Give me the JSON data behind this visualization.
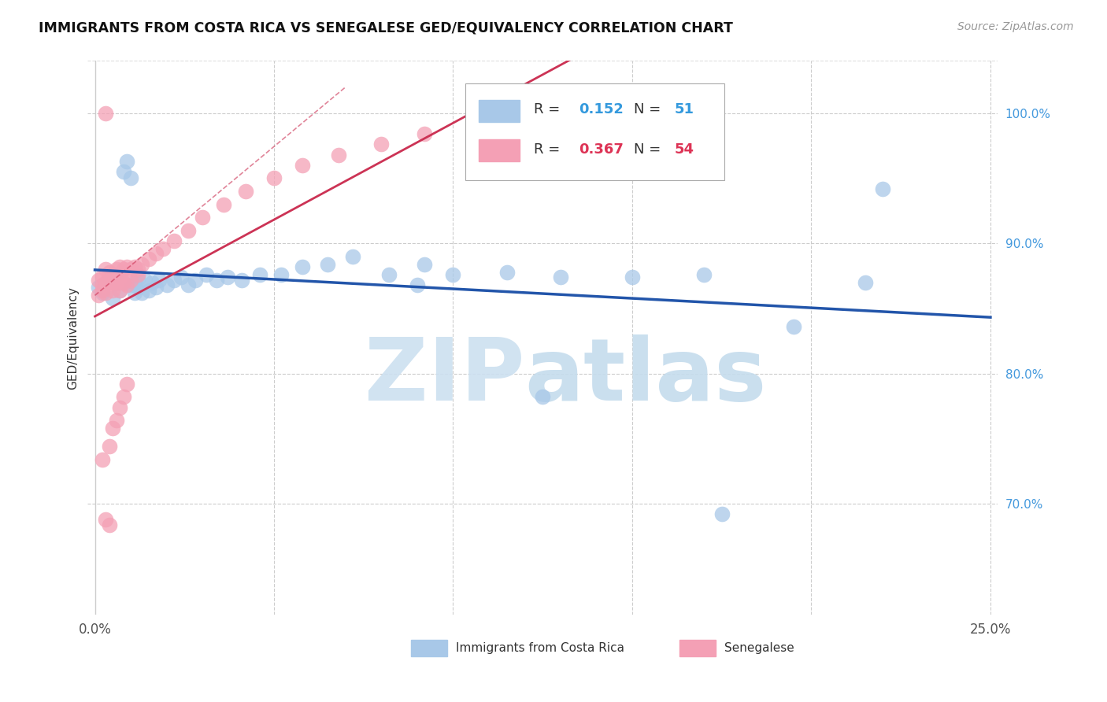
{
  "title": "IMMIGRANTS FROM COSTA RICA VS SENEGALESE GED/EQUIVALENCY CORRELATION CHART",
  "source": "Source: ZipAtlas.com",
  "ylabel": "GED/Equivalency",
  "xlim": [
    0.0,
    0.25
  ],
  "ylim": [
    0.615,
    1.04
  ],
  "color_blue": "#a8c8e8",
  "color_pink": "#f4a0b5",
  "line_blue": "#2255aa",
  "line_pink": "#cc3355",
  "watermark_zip": "#c8dff0",
  "watermark_atlas": "#c0d8ee",
  "blue_x": [
    0.001,
    0.002,
    0.003,
    0.004,
    0.005,
    0.005,
    0.006,
    0.007,
    0.007,
    0.008,
    0.008,
    0.009,
    0.01,
    0.01,
    0.011,
    0.011,
    0.012,
    0.012,
    0.013,
    0.014,
    0.015,
    0.016,
    0.017,
    0.018,
    0.02,
    0.022,
    0.024,
    0.026,
    0.028,
    0.031,
    0.034,
    0.037,
    0.041,
    0.046,
    0.052,
    0.058,
    0.065,
    0.072,
    0.082,
    0.092,
    0.1,
    0.115,
    0.13,
    0.15,
    0.17,
    0.195,
    0.215,
    0.175,
    0.125,
    0.09,
    0.22
  ],
  "blue_y": [
    0.866,
    0.862,
    0.869,
    0.873,
    0.876,
    0.858,
    0.869,
    0.864,
    0.872,
    0.955,
    0.87,
    0.963,
    0.868,
    0.95,
    0.87,
    0.862,
    0.866,
    0.873,
    0.862,
    0.872,
    0.864,
    0.87,
    0.866,
    0.872,
    0.868,
    0.872,
    0.874,
    0.868,
    0.872,
    0.876,
    0.872,
    0.874,
    0.872,
    0.876,
    0.876,
    0.882,
    0.884,
    0.89,
    0.876,
    0.884,
    0.876,
    0.878,
    0.874,
    0.874,
    0.876,
    0.836,
    0.87,
    0.692,
    0.782,
    0.868,
    0.942
  ],
  "pink_x": [
    0.001,
    0.001,
    0.002,
    0.002,
    0.002,
    0.003,
    0.003,
    0.003,
    0.004,
    0.004,
    0.005,
    0.005,
    0.005,
    0.006,
    0.006,
    0.007,
    0.007,
    0.007,
    0.008,
    0.008,
    0.009,
    0.009,
    0.01,
    0.01,
    0.011,
    0.012,
    0.012,
    0.013,
    0.015,
    0.017,
    0.019,
    0.022,
    0.026,
    0.03,
    0.036,
    0.042,
    0.05,
    0.058,
    0.068,
    0.08,
    0.092,
    0.106,
    0.12,
    0.14,
    0.002,
    0.003,
    0.004,
    0.005,
    0.006,
    0.007,
    0.008,
    0.009,
    0.004,
    0.003
  ],
  "pink_y": [
    0.872,
    0.86,
    0.875,
    0.864,
    0.868,
    0.88,
    0.87,
    0.862,
    0.878,
    0.87,
    0.876,
    0.87,
    0.864,
    0.88,
    0.87,
    0.882,
    0.874,
    0.864,
    0.88,
    0.87,
    0.882,
    0.868,
    0.88,
    0.872,
    0.882,
    0.876,
    0.88,
    0.884,
    0.888,
    0.892,
    0.896,
    0.902,
    0.91,
    0.92,
    0.93,
    0.94,
    0.95,
    0.96,
    0.968,
    0.976,
    0.984,
    0.99,
    0.996,
    1.0,
    0.734,
    0.688,
    0.744,
    0.758,
    0.764,
    0.774,
    0.782,
    0.792,
    0.684,
    1.0
  ]
}
